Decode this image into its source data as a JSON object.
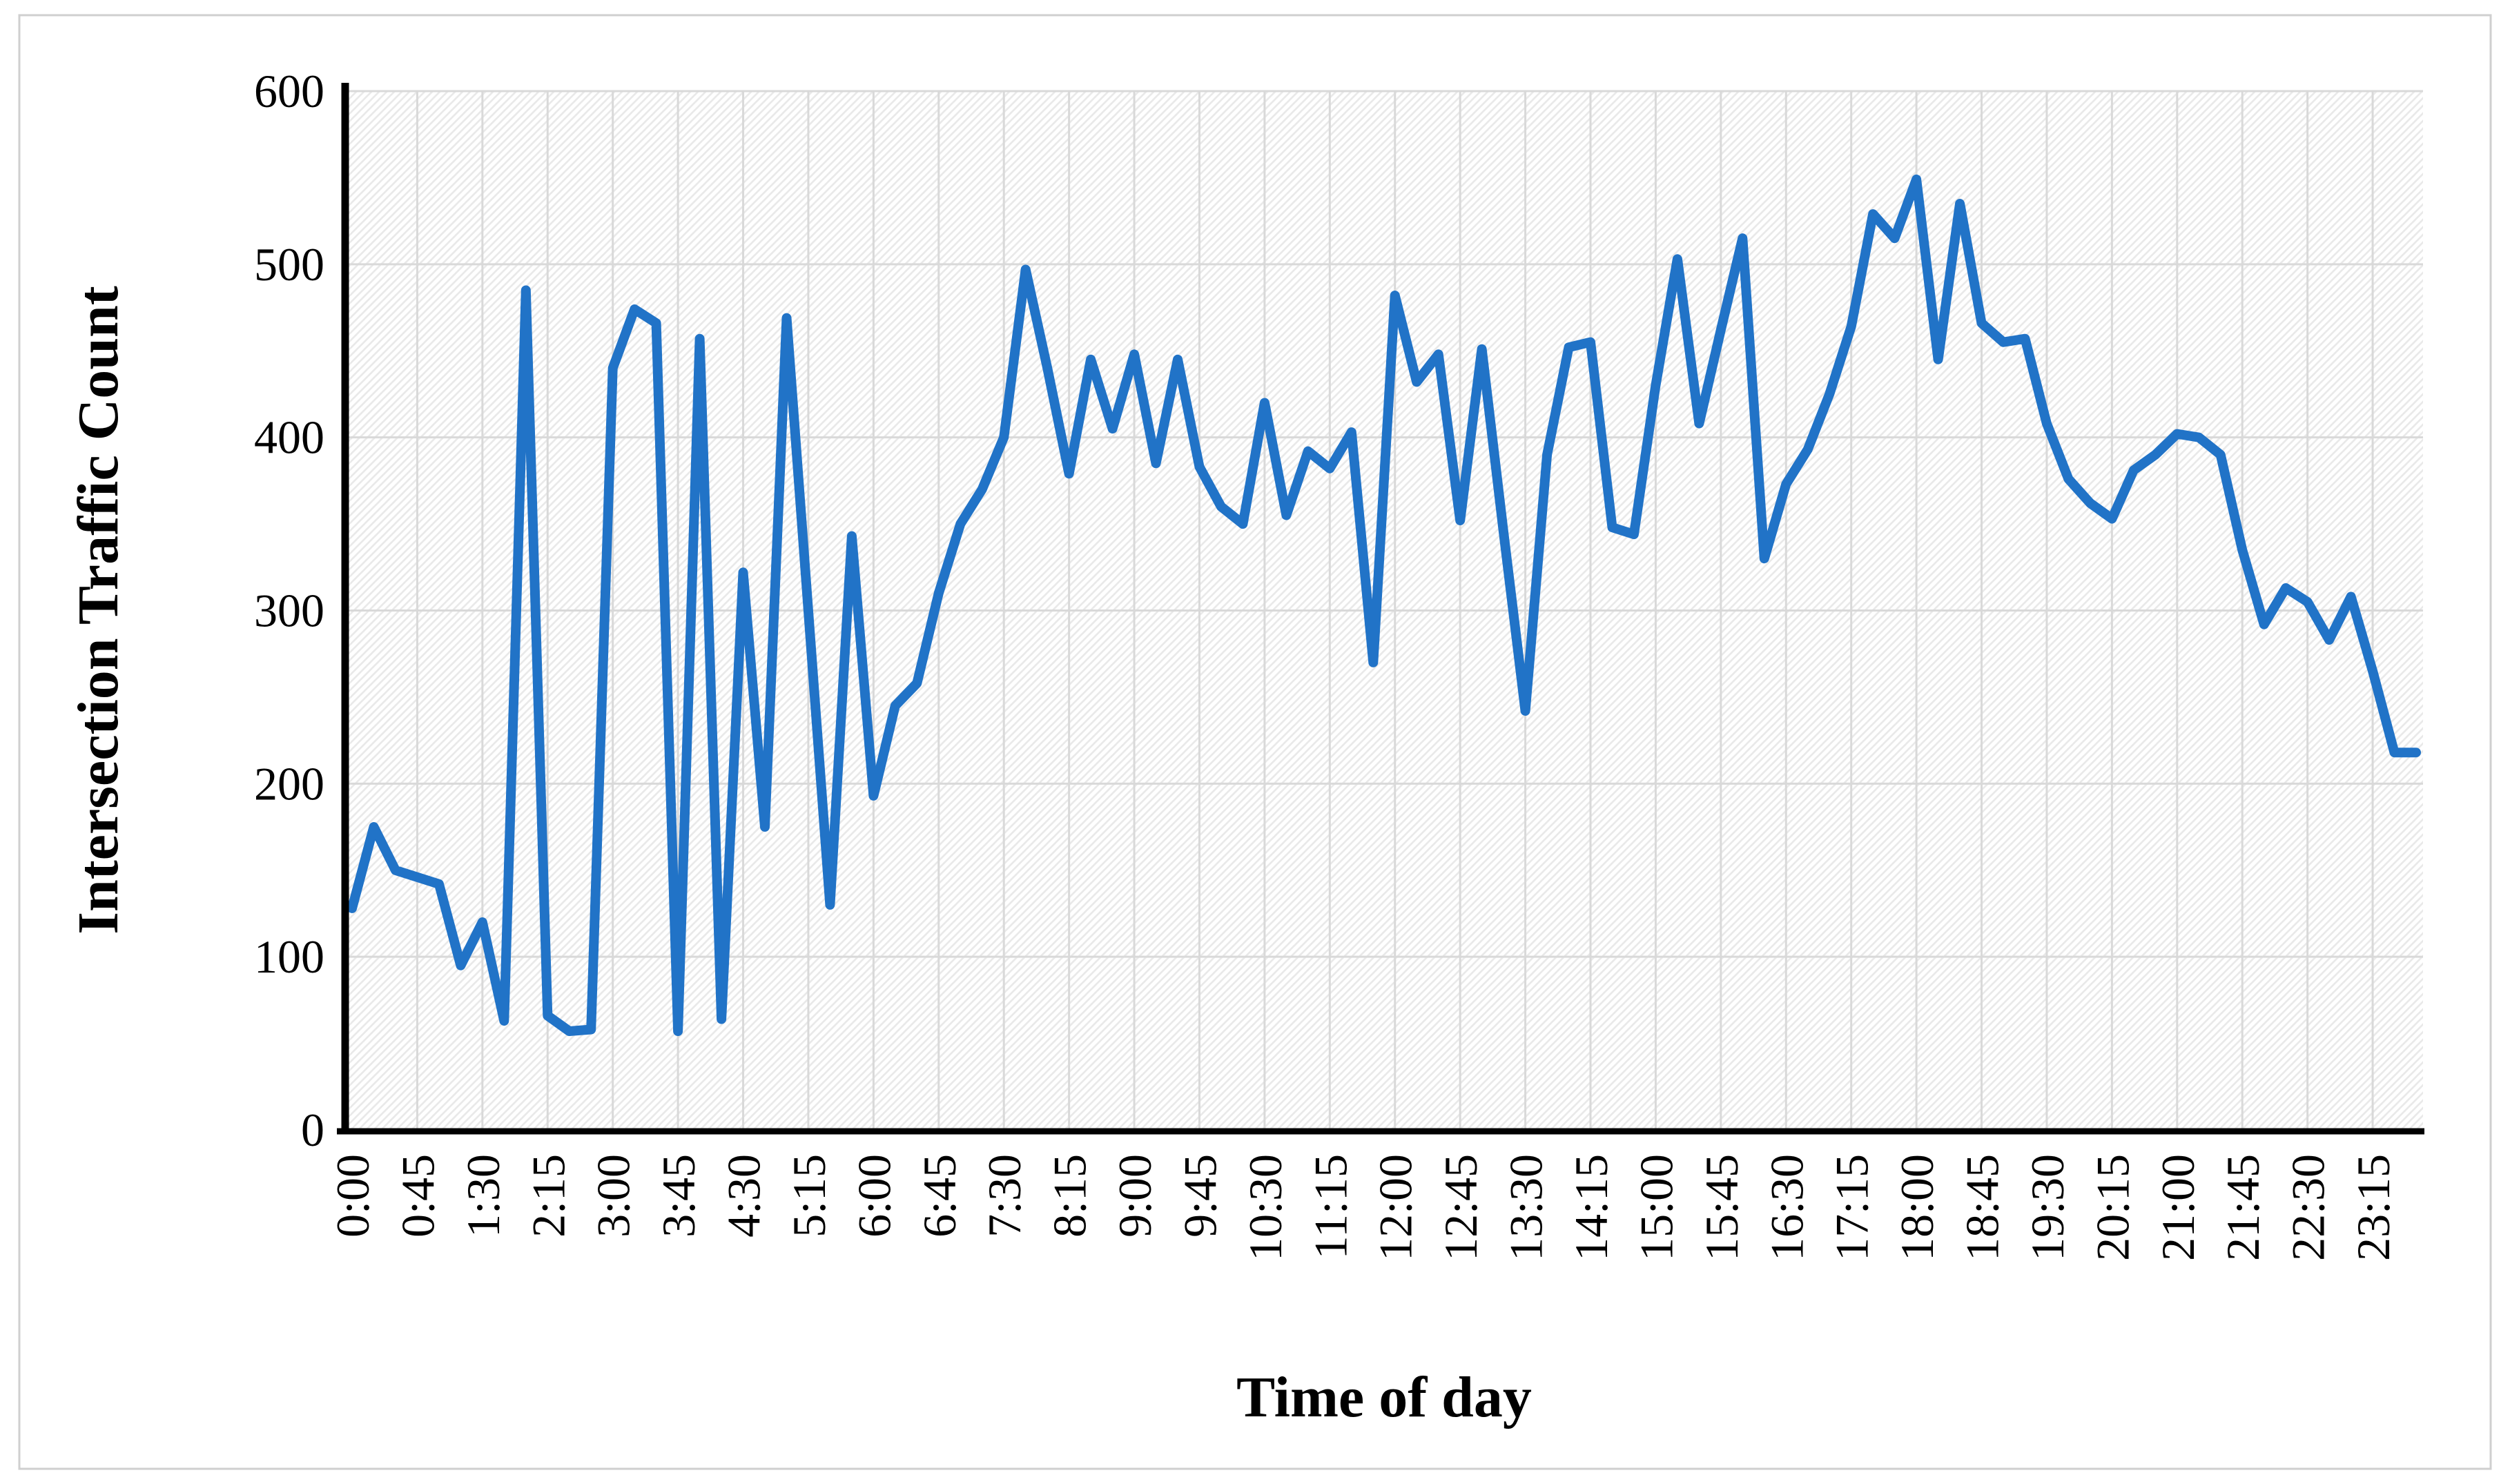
{
  "chart_data": {
    "type": "line",
    "title": "",
    "xlabel": "Time of day",
    "ylabel": "Intersection Traffic Count",
    "ylim": [
      0,
      600
    ],
    "yticks": [
      0,
      100,
      200,
      300,
      400,
      500,
      600
    ],
    "x_tick_labels": [
      "0:00",
      "0:45",
      "1:30",
      "2:15",
      "3:00",
      "3:45",
      "4:30",
      "5:15",
      "6:00",
      "6:45",
      "7:30",
      "8:15",
      "9:00",
      "9:45",
      "10:30",
      "11:15",
      "12:00",
      "12:45",
      "13:30",
      "14:15",
      "15:00",
      "15:45",
      "16:30",
      "17:15",
      "18:00",
      "18:45",
      "19:30",
      "20:15",
      "21:00",
      "21:45",
      "22:30",
      "23:15"
    ],
    "tick_every_points": 3,
    "interval_minutes": 15,
    "start_time": "0:00",
    "end_time": "23:45",
    "legend_position": "none",
    "grid": "horizontal+vertical",
    "plot_background": "diagonal-hatch",
    "line_color": "#2173c7",
    "gridline_color": "#d9d9d9",
    "hatch_color": "#e9e9e9",
    "axis_color": "#000000",
    "frame_color": "#cfcfcf",
    "series": [
      {
        "name": "Intersection Traffic Count",
        "values": [
          128,
          175,
          150,
          146,
          142,
          95,
          120,
          63,
          485,
          66,
          57,
          58,
          440,
          474,
          466,
          57,
          457,
          64,
          322,
          175,
          469,
          300,
          130,
          343,
          193,
          245,
          258,
          310,
          350,
          370,
          400,
          497,
          440,
          379,
          445,
          405,
          448,
          385,
          445,
          383,
          360,
          350,
          420,
          355,
          392,
          382,
          403,
          270,
          482,
          432,
          448,
          352,
          451,
          345,
          242,
          390,
          452,
          455,
          348,
          344,
          430,
          503,
          408,
          462,
          515,
          330,
          373,
          393,
          425,
          464,
          529,
          515,
          549,
          445,
          535,
          466,
          455,
          457,
          408,
          376,
          362,
          353,
          381,
          390,
          402,
          400,
          390,
          335,
          292,
          313,
          305,
          283,
          308,
          265,
          218,
          218
        ]
      }
    ]
  }
}
